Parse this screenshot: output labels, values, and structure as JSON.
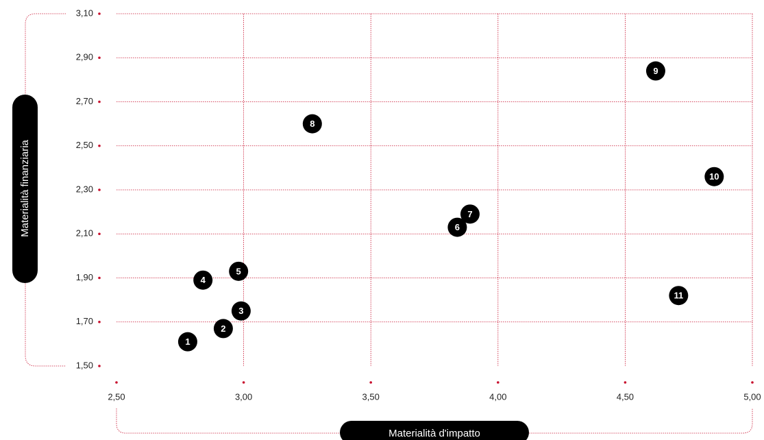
{
  "chart_data": {
    "type": "scatter",
    "title": "",
    "xlabel": "Materialità d'impatto",
    "ylabel": "Materialità finanziaria",
    "xlim": [
      2.5,
      5.0
    ],
    "ylim": [
      1.5,
      3.1
    ],
    "xticks": [
      2.5,
      3.0,
      3.5,
      4.0,
      4.5,
      5.0
    ],
    "xtick_labels": [
      "2,50",
      "3,00",
      "3,50",
      "4,00",
      "4,50",
      "5,00"
    ],
    "yticks": [
      1.5,
      1.7,
      1.9,
      2.1,
      2.3,
      2.5,
      2.7,
      2.9,
      3.1
    ],
    "ytick_labels": [
      "1,50",
      "1,70",
      "1,90",
      "2,10",
      "2,30",
      "2,50",
      "2,70",
      "2,90",
      "3,10"
    ],
    "grid": true,
    "points": [
      {
        "label": "1",
        "x": 2.78,
        "y": 1.61
      },
      {
        "label": "2",
        "x": 2.92,
        "y": 1.67
      },
      {
        "label": "3",
        "x": 2.99,
        "y": 1.75
      },
      {
        "label": "4",
        "x": 2.84,
        "y": 1.89
      },
      {
        "label": "5",
        "x": 2.98,
        "y": 1.93
      },
      {
        "label": "6",
        "x": 3.84,
        "y": 2.13
      },
      {
        "label": "7",
        "x": 3.89,
        "y": 2.19
      },
      {
        "label": "8",
        "x": 3.27,
        "y": 2.6
      },
      {
        "label": "9",
        "x": 4.62,
        "y": 2.84
      },
      {
        "label": "10",
        "x": 4.85,
        "y": 2.36
      },
      {
        "label": "11",
        "x": 4.71,
        "y": 1.82
      }
    ],
    "colors": {
      "point": "#000000",
      "point_text": "#ffffff",
      "grid": "#c8102e",
      "tick_dot": "#c8102e",
      "axis_pill": "#000000"
    }
  }
}
